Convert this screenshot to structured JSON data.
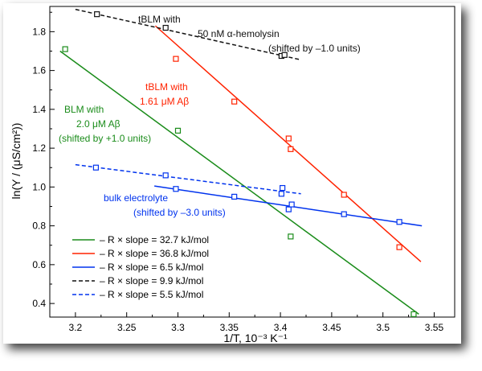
{
  "chart_data": {
    "type": "scatter",
    "xlabel": "1/T, 10⁻³ K⁻¹",
    "ylabel": "ln(Y / (μS/cm²))",
    "xlim": [
      3.175,
      3.57
    ],
    "ylim": [
      0.33,
      1.93
    ],
    "xticks": [
      3.2,
      3.25,
      3.3,
      3.35,
      3.4,
      3.45,
      3.5,
      3.55
    ],
    "xtick_labels": [
      "3.2",
      "3.25",
      "3.3",
      "3.35",
      "3.4",
      "3.45",
      "3.5",
      "3.55"
    ],
    "yticks": [
      0.4,
      0.6,
      0.8,
      1.0,
      1.2,
      1.4,
      1.6,
      1.8
    ],
    "ytick_labels": [
      "0.4",
      "0.6",
      "0.8",
      "1.0",
      "1.2",
      "1.4",
      "1.6",
      "1.8"
    ],
    "grid": false,
    "legend_position": "bottom-left",
    "series": [
      {
        "color": "#1a8c1a",
        "line_style": "solid",
        "legend": "– R × slope = 32.7 kJ/mol",
        "points": [
          [
            3.19,
            1.71
          ],
          [
            3.3,
            1.29
          ],
          [
            3.41,
            0.745
          ],
          [
            3.53,
            0.345
          ]
        ],
        "fit": [
          [
            3.185,
            1.7
          ],
          [
            3.535,
            0.345
          ]
        ]
      },
      {
        "color": "#ff2200",
        "line_style": "solid",
        "legend": "– R × slope = 36.8 kJ/mol",
        "points": [
          [
            3.298,
            1.66
          ],
          [
            3.355,
            1.44
          ],
          [
            3.408,
            1.25
          ],
          [
            3.41,
            1.195
          ],
          [
            3.462,
            0.96
          ],
          [
            3.516,
            0.69
          ]
        ],
        "fit": [
          [
            3.278,
            1.83
          ],
          [
            3.537,
            0.615
          ]
        ]
      },
      {
        "color": "#0033ee",
        "line_style": "solid",
        "legend": "– R × slope =   6.5 kJ/mol",
        "points": [
          [
            3.298,
            0.99
          ],
          [
            3.355,
            0.95
          ],
          [
            3.401,
            0.965
          ],
          [
            3.408,
            0.885
          ],
          [
            3.411,
            0.91
          ],
          [
            3.462,
            0.86
          ],
          [
            3.516,
            0.82
          ]
        ],
        "fit": [
          [
            3.277,
            1.005
          ],
          [
            3.538,
            0.8
          ]
        ]
      },
      {
        "color": "#111111",
        "line_style": "dashed",
        "legend": "– R × slope =   9.9 kJ/mol",
        "points": [
          [
            3.221,
            1.89
          ],
          [
            3.288,
            1.82
          ],
          [
            3.401,
            1.675
          ],
          [
            3.404,
            1.68
          ]
        ],
        "fit": [
          [
            3.2,
            1.915
          ],
          [
            3.42,
            1.655
          ]
        ]
      },
      {
        "color": "#0033ee",
        "line_style": "dashed",
        "legend": "– R × slope =   5.5 kJ/mol",
        "points": [
          [
            3.22,
            1.1
          ],
          [
            3.288,
            1.06
          ],
          [
            3.402,
            0.995
          ]
        ],
        "fit": [
          [
            3.2,
            1.115
          ],
          [
            3.42,
            0.965
          ]
        ]
      }
    ],
    "annotations": [
      {
        "color": "#111111",
        "lines": [
          "tBLM with",
          "50 nM α-hemolysin",
          "(shifted by –1.0 units)"
        ]
      },
      {
        "color": "#ff2200",
        "lines": [
          "tBLM with",
          "1.61 μM Aβ"
        ]
      },
      {
        "color": "#1a8c1a",
        "lines": [
          "BLM with",
          "2.0 μM Aβ",
          "(shifted by +1.0 units)"
        ]
      },
      {
        "color": "#0033ee",
        "lines": [
          "bulk electrolyte",
          "(shifted by –3.0 units)"
        ]
      }
    ]
  }
}
